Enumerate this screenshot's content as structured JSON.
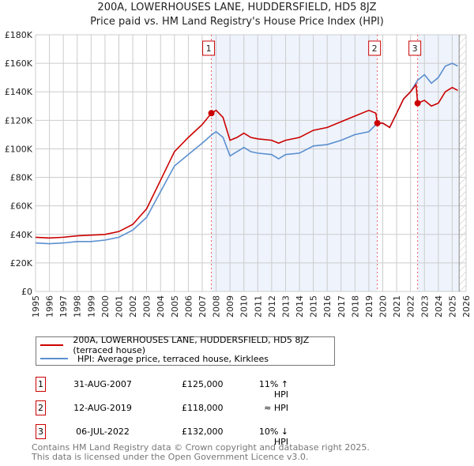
{
  "title": "200A, LOWERHOUSES LANE, HUDDERSFIELD, HD5 8JZ",
  "subtitle": "Price paid vs. HM Land Registry's House Price Index (HPI)",
  "chart_data": {
    "type": "line",
    "xlim": [
      1995,
      2026
    ],
    "ylim": [
      0,
      180000
    ],
    "x_ticks": [
      "1995",
      "1996",
      "1997",
      "1998",
      "1999",
      "2000",
      "2001",
      "2002",
      "2003",
      "2004",
      "2005",
      "2006",
      "2007",
      "2008",
      "2009",
      "2010",
      "2011",
      "2012",
      "2013",
      "2014",
      "2015",
      "2016",
      "2017",
      "2018",
      "2019",
      "2020",
      "2021",
      "2022",
      "2023",
      "2024",
      "2025",
      "2026"
    ],
    "y_ticks": [
      {
        "v": 0,
        "label": "£0"
      },
      {
        "v": 20000,
        "label": "£20K"
      },
      {
        "v": 40000,
        "label": "£40K"
      },
      {
        "v": 60000,
        "label": "£60K"
      },
      {
        "v": 80000,
        "label": "£80K"
      },
      {
        "v": 100000,
        "label": "£100K"
      },
      {
        "v": 120000,
        "label": "£120K"
      },
      {
        "v": 140000,
        "label": "£140K"
      },
      {
        "v": 160000,
        "label": "£160K"
      },
      {
        "v": 180000,
        "label": "£180K"
      }
    ],
    "grid": true,
    "series": [
      {
        "name": "200A, LOWERHOUSES LANE, HUDDERSFIELD, HD5 8JZ (terraced house)",
        "color": "#cc0000",
        "x": [
          1995,
          1996,
          1997,
          1998,
          1999,
          2000,
          2001,
          2002,
          2003,
          2004,
          2005,
          2006,
          2007,
          2007.66,
          2008,
          2008.5,
          2009,
          2009.5,
          2010,
          2010.5,
          2011,
          2012,
          2012.5,
          2013,
          2014,
          2015,
          2016,
          2017,
          2018,
          2019,
          2019.5,
          2019.61,
          2020,
          2020.5,
          2021,
          2021.5,
          2022,
          2022.4,
          2022.51,
          2023,
          2023.5,
          2024,
          2024.5,
          2025,
          2025.4
        ],
        "y": [
          38000,
          37500,
          38000,
          39000,
          39500,
          40000,
          42000,
          47000,
          58000,
          78000,
          98000,
          108000,
          117000,
          125000,
          127000,
          122000,
          106000,
          108000,
          111000,
          108000,
          107000,
          106000,
          104000,
          106000,
          108000,
          113000,
          115000,
          119000,
          123000,
          127000,
          125000,
          118000,
          118000,
          115000,
          125000,
          135000,
          140000,
          145000,
          132000,
          134000,
          130000,
          132000,
          140000,
          143000,
          141000
        ]
      },
      {
        "name": "HPI: Average price, terraced house, Kirklees",
        "color": "#5b8fd0",
        "x": [
          1995,
          1996,
          1997,
          1998,
          1999,
          2000,
          2001,
          2002,
          2003,
          2004,
          2005,
          2006,
          2007,
          2007.7,
          2008,
          2008.5,
          2009,
          2009.5,
          2010,
          2010.5,
          2011,
          2012,
          2012.5,
          2013,
          2014,
          2015,
          2016,
          2017,
          2018,
          2019,
          2019.6,
          2020,
          2020.5,
          2021,
          2021.5,
          2022,
          2022.5,
          2023,
          2023.5,
          2024,
          2024.5,
          2025,
          2025.4
        ],
        "y": [
          34000,
          33500,
          34000,
          35000,
          35000,
          36000,
          38000,
          43000,
          52000,
          70000,
          88000,
          96000,
          104000,
          110000,
          112000,
          108000,
          95000,
          98000,
          101000,
          98000,
          97000,
          96000,
          93000,
          96000,
          97000,
          102000,
          103000,
          106000,
          110000,
          112000,
          118000,
          118000,
          115000,
          125000,
          135000,
          140000,
          148000,
          152000,
          146000,
          150000,
          158000,
          160000,
          158000
        ]
      }
    ],
    "sales": [
      {
        "id": "1",
        "x": 2007.66,
        "y": 125000,
        "date": "31-AUG-2007",
        "price": "£125,000",
        "hpi": "11% ↑ HPI"
      },
      {
        "id": "2",
        "x": 2019.61,
        "y": 118000,
        "date": "12-AUG-2019",
        "price": "£118,000",
        "hpi": "≈ HPI"
      },
      {
        "id": "3",
        "x": 2022.51,
        "y": 132000,
        "date": "06-JUL-2022",
        "price": "£132,000",
        "hpi": "10% ↓ HPI"
      }
    ],
    "forecast_start": 2025.5
  },
  "footer": [
    "Contains HM Land Registry data © Crown copyright and database right 2025.",
    "This data is licensed under the Open Government Licence v3.0."
  ]
}
